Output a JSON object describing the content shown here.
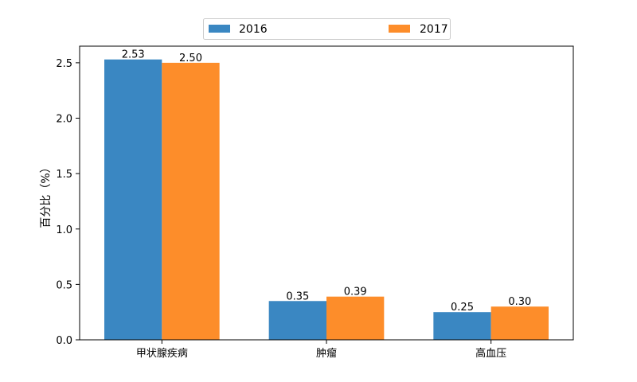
{
  "chart_data": {
    "type": "bar",
    "categories": [
      "甲状腺疾病",
      "肿瘤",
      "高血压"
    ],
    "series": [
      {
        "name": "2016",
        "values": [
          2.53,
          0.35,
          0.25
        ],
        "color": "#3a87c2",
        "labels": [
          "2.53",
          "0.35",
          "0.25"
        ]
      },
      {
        "name": "2017",
        "values": [
          2.5,
          0.39,
          0.3
        ],
        "color": "#fd8d2a",
        "labels": [
          "2.50",
          "0.39",
          "0.30"
        ]
      }
    ],
    "ylabel": "百分比（%）",
    "xlabel": "",
    "ylim": [
      0,
      2.65
    ],
    "yticks": [
      0.0,
      0.5,
      1.0,
      1.5,
      2.0,
      2.5
    ],
    "ytick_labels": [
      "0.0",
      "0.5",
      "1.0",
      "1.5",
      "2.0",
      "2.5"
    ],
    "legend_position": "top-center",
    "grid": false
  }
}
